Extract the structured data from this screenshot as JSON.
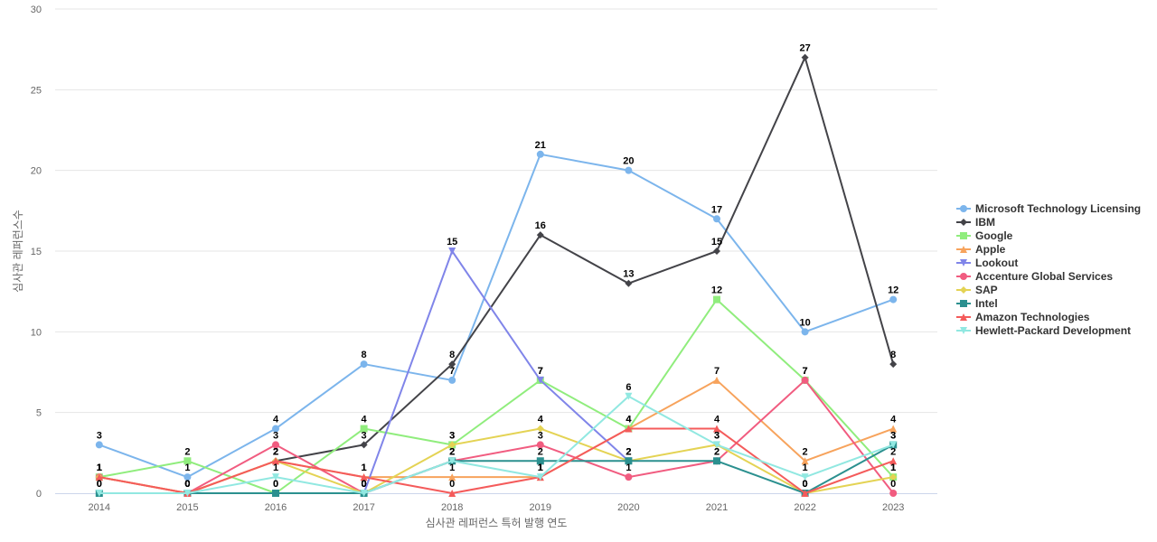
{
  "chart_data": {
    "type": "line",
    "title": "",
    "xlabel": "심사관 레퍼런스 특허 발행 연도",
    "ylabel": "심사관 레퍼런스수",
    "x": [
      "2014",
      "2015",
      "2016",
      "2017",
      "2018",
      "2019",
      "2020",
      "2021",
      "2022",
      "2023"
    ],
    "ylim": [
      0,
      30
    ],
    "yticks": [
      0,
      5,
      10,
      15,
      20,
      25,
      30
    ],
    "grid": true,
    "legend_position": "right",
    "series": [
      {
        "name": "Microsoft Technology Licensing",
        "color": "#7cb5ec",
        "marker": "circle",
        "values": [
          3,
          1,
          4,
          8,
          7,
          21,
          20,
          17,
          10,
          12
        ]
      },
      {
        "name": "IBM",
        "color": "#434348",
        "marker": "diamond",
        "values": [
          null,
          null,
          2,
          3,
          8,
          16,
          13,
          15,
          27,
          8
        ]
      },
      {
        "name": "Google",
        "color": "#90ed7d",
        "marker": "square",
        "values": [
          1,
          2,
          0,
          4,
          3,
          7,
          4,
          12,
          7,
          1
        ]
      },
      {
        "name": "Apple",
        "color": "#f7a35c",
        "marker": "triangle",
        "values": [
          1,
          0,
          2,
          1,
          1,
          1,
          4,
          7,
          2,
          4
        ]
      },
      {
        "name": "Lookout",
        "color": "#8085e9",
        "marker": "triangle-down",
        "values": [
          null,
          null,
          null,
          0,
          15,
          7,
          2,
          null,
          null,
          null
        ]
      },
      {
        "name": "Accenture Global Services",
        "color": "#f15c80",
        "marker": "circle",
        "values": [
          1,
          0,
          3,
          0,
          2,
          3,
          1,
          2,
          7,
          0
        ]
      },
      {
        "name": "SAP",
        "color": "#e4d354",
        "marker": "diamond",
        "values": [
          1,
          0,
          2,
          0,
          3,
          4,
          2,
          3,
          0,
          1
        ]
      },
      {
        "name": "Intel",
        "color": "#2b908f",
        "marker": "square",
        "values": [
          0,
          0,
          0,
          0,
          2,
          2,
          2,
          2,
          0,
          3
        ]
      },
      {
        "name": "Amazon Technologies",
        "color": "#f45b5b",
        "marker": "triangle",
        "values": [
          1,
          0,
          2,
          1,
          0,
          1,
          4,
          4,
          0,
          2
        ]
      },
      {
        "name": "Hewlett-Packard Development",
        "color": "#91e8e1",
        "marker": "triangle-down",
        "values": [
          0,
          0,
          1,
          0,
          2,
          1,
          6,
          3,
          1,
          3
        ]
      }
    ]
  }
}
